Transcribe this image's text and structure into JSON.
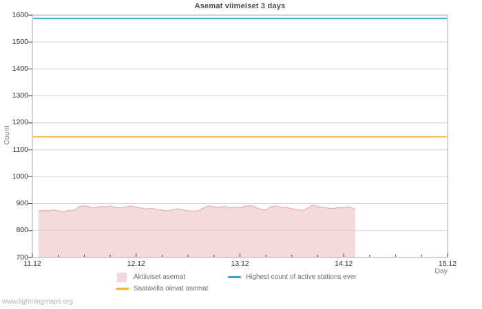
{
  "page": {
    "watermark": "www.lightningmaps.org"
  },
  "legend": {
    "items": [
      {
        "label": "Aktiiviset asemat",
        "swatch": "square",
        "color": "#f4d7d8"
      },
      {
        "label": "Highest count of active stations ever",
        "swatch": "line",
        "color": "#2aa8c9"
      },
      {
        "label": "Saatavilla olevat asemat",
        "swatch": "line",
        "color": "#f9b233"
      }
    ]
  },
  "chart_data": {
    "type": "area",
    "title": "Asemat viimeiset 3 days",
    "xlabel": "Day",
    "ylabel": "Count",
    "ylim": [
      700,
      1600
    ],
    "xlim_days": [
      0,
      4
    ],
    "y_ticks": [
      1600,
      1500,
      1400,
      1300,
      1200,
      1100,
      1000,
      900,
      800,
      700
    ],
    "x_tick_labels": [
      "11.12",
      "12.12",
      "13.12",
      "14.12",
      "15.12"
    ],
    "x_minor_tick_interval_days": 0.25,
    "grid": "horizontal",
    "layout_hints": {
      "legend_position": "bottom",
      "gridline_color": "#d2d2d2",
      "border_color": "#a9a9a9",
      "tick_color": "#3a3a3a"
    },
    "series": [
      {
        "name": "Aktiiviset asemat",
        "type": "area",
        "fill_color": "rgba(240,193,195,0.6)",
        "stroke_color": "#e2aeb1",
        "x_days": [
          0.06,
          0.1,
          0.15,
          0.2,
          0.25,
          0.3,
          0.35,
          0.4,
          0.45,
          0.5,
          0.55,
          0.6,
          0.65,
          0.7,
          0.75,
          0.8,
          0.85,
          0.9,
          0.95,
          1.0,
          1.05,
          1.1,
          1.15,
          1.2,
          1.25,
          1.3,
          1.35,
          1.4,
          1.45,
          1.5,
          1.55,
          1.6,
          1.65,
          1.7,
          1.75,
          1.8,
          1.85,
          1.9,
          1.95,
          2.0,
          2.05,
          2.1,
          2.15,
          2.2,
          2.25,
          2.3,
          2.35,
          2.4,
          2.45,
          2.5,
          2.55,
          2.6,
          2.65,
          2.7,
          2.75,
          2.8,
          2.85,
          2.9,
          2.95,
          3.0,
          3.05,
          3.11
        ],
        "values": [
          872,
          875,
          873,
          877,
          873,
          869,
          875,
          874,
          889,
          892,
          888,
          884,
          890,
          888,
          891,
          886,
          884,
          888,
          891,
          887,
          884,
          880,
          883,
          879,
          876,
          873,
          878,
          881,
          877,
          874,
          871,
          874,
          884,
          892,
          888,
          886,
          890,
          884,
          887,
          885,
          890,
          893,
          886,
          879,
          876,
          889,
          891,
          887,
          885,
          881,
          878,
          874,
          883,
          895,
          889,
          887,
          883,
          882,
          886,
          884,
          889,
          879
        ]
      },
      {
        "name": "Saatavilla olevat asemat",
        "type": "hline",
        "color": "#f9b233",
        "value": 1148
      },
      {
        "name": "Highest count of active stations ever",
        "type": "hline",
        "color": "#2aa8c9",
        "value": 1588
      }
    ]
  }
}
